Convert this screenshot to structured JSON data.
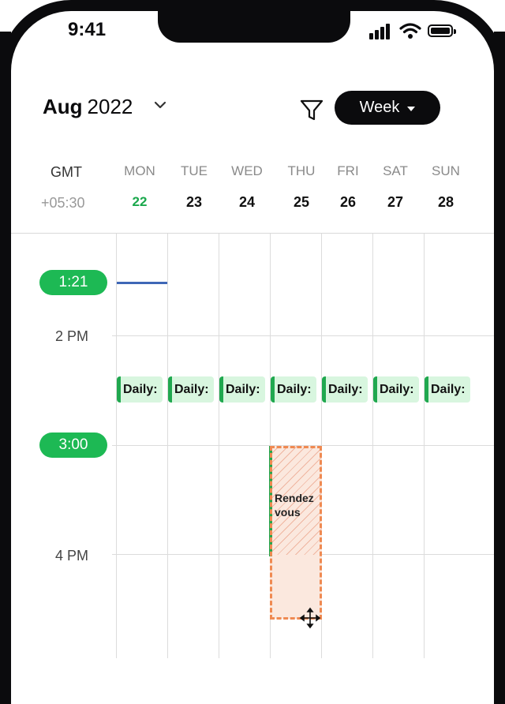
{
  "status_bar": {
    "time": "9:41"
  },
  "header": {
    "month": "Aug",
    "year": "2022",
    "view_button": "Week"
  },
  "timezone": {
    "label": "GMT",
    "offset": "+05:30"
  },
  "days": [
    {
      "name": "MON",
      "date": "22",
      "today": true
    },
    {
      "name": "TUE",
      "date": "23"
    },
    {
      "name": "WED",
      "date": "24"
    },
    {
      "name": "THU",
      "date": "25"
    },
    {
      "name": "FRI",
      "date": "26"
    },
    {
      "name": "SAT",
      "date": "27"
    },
    {
      "name": "SUN",
      "date": "28"
    }
  ],
  "time_axis": {
    "current_time_pill": "1:21",
    "hour_2pm": "2 PM",
    "selected_time_pill": "3:00",
    "hour_4pm": "4 PM"
  },
  "events": {
    "daily_label": "Daily:",
    "rendezvous": "Rendez vous"
  },
  "colors": {
    "accent_green": "#1db954",
    "now_line": "#3f67b6",
    "daily_bg": "#d8f6df",
    "selection_border": "#ef8a52",
    "selection_bg": "#fbe8de"
  }
}
